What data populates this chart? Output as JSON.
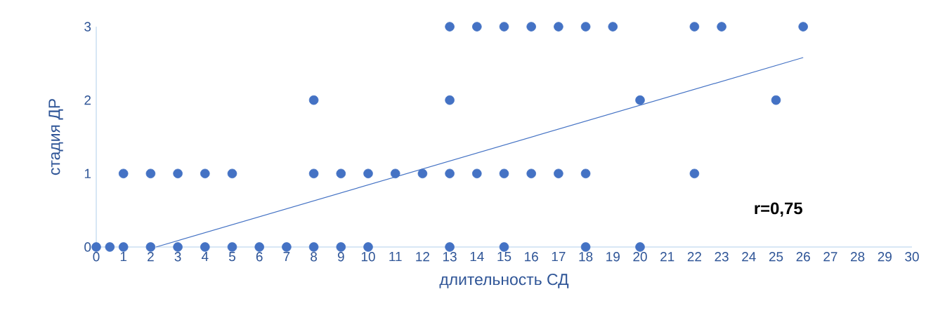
{
  "chart_data": {
    "type": "scatter",
    "xlabel": "длительность СД",
    "ylabel": "стадия ДР",
    "marker": "circle",
    "xlim": [
      0,
      30
    ],
    "ylim": [
      0,
      3
    ],
    "xticks": [
      0,
      1,
      2,
      3,
      4,
      5,
      6,
      7,
      8,
      9,
      10,
      11,
      12,
      13,
      14,
      15,
      16,
      17,
      18,
      19,
      20,
      21,
      22,
      23,
      24,
      25,
      26,
      27,
      28,
      29,
      30
    ],
    "yticks": [
      0,
      1,
      2,
      3
    ],
    "annotations": [
      "r=0,75"
    ],
    "series": [
      {
        "color": "#4472c4",
        "x": [
          13,
          14,
          15,
          16,
          17,
          18,
          19,
          22,
          23,
          26,
          8,
          13,
          20,
          25,
          1,
          2,
          3,
          4,
          5,
          8,
          9,
          10,
          11,
          12,
          13,
          14,
          15,
          16,
          17,
          18,
          22,
          0,
          0.5,
          1,
          2,
          3,
          4,
          5,
          6,
          7,
          8,
          9,
          10,
          13,
          15,
          18,
          20
        ],
        "values": [
          3,
          3,
          3,
          3,
          3,
          3,
          3,
          3,
          3,
          3,
          2,
          2,
          2,
          2,
          1,
          1,
          1,
          1,
          1,
          1,
          1,
          1,
          1,
          1,
          1,
          1,
          1,
          1,
          1,
          1,
          1,
          0,
          0,
          0,
          0,
          0,
          0,
          0,
          0,
          0,
          0,
          0,
          0,
          0,
          0,
          0,
          0
        ]
      },
      {
        "type": "line",
        "marker": "none",
        "color": "#4472c4",
        "x": [
          2.2,
          26
        ],
        "values": [
          0,
          2.58
        ]
      }
    ]
  }
}
